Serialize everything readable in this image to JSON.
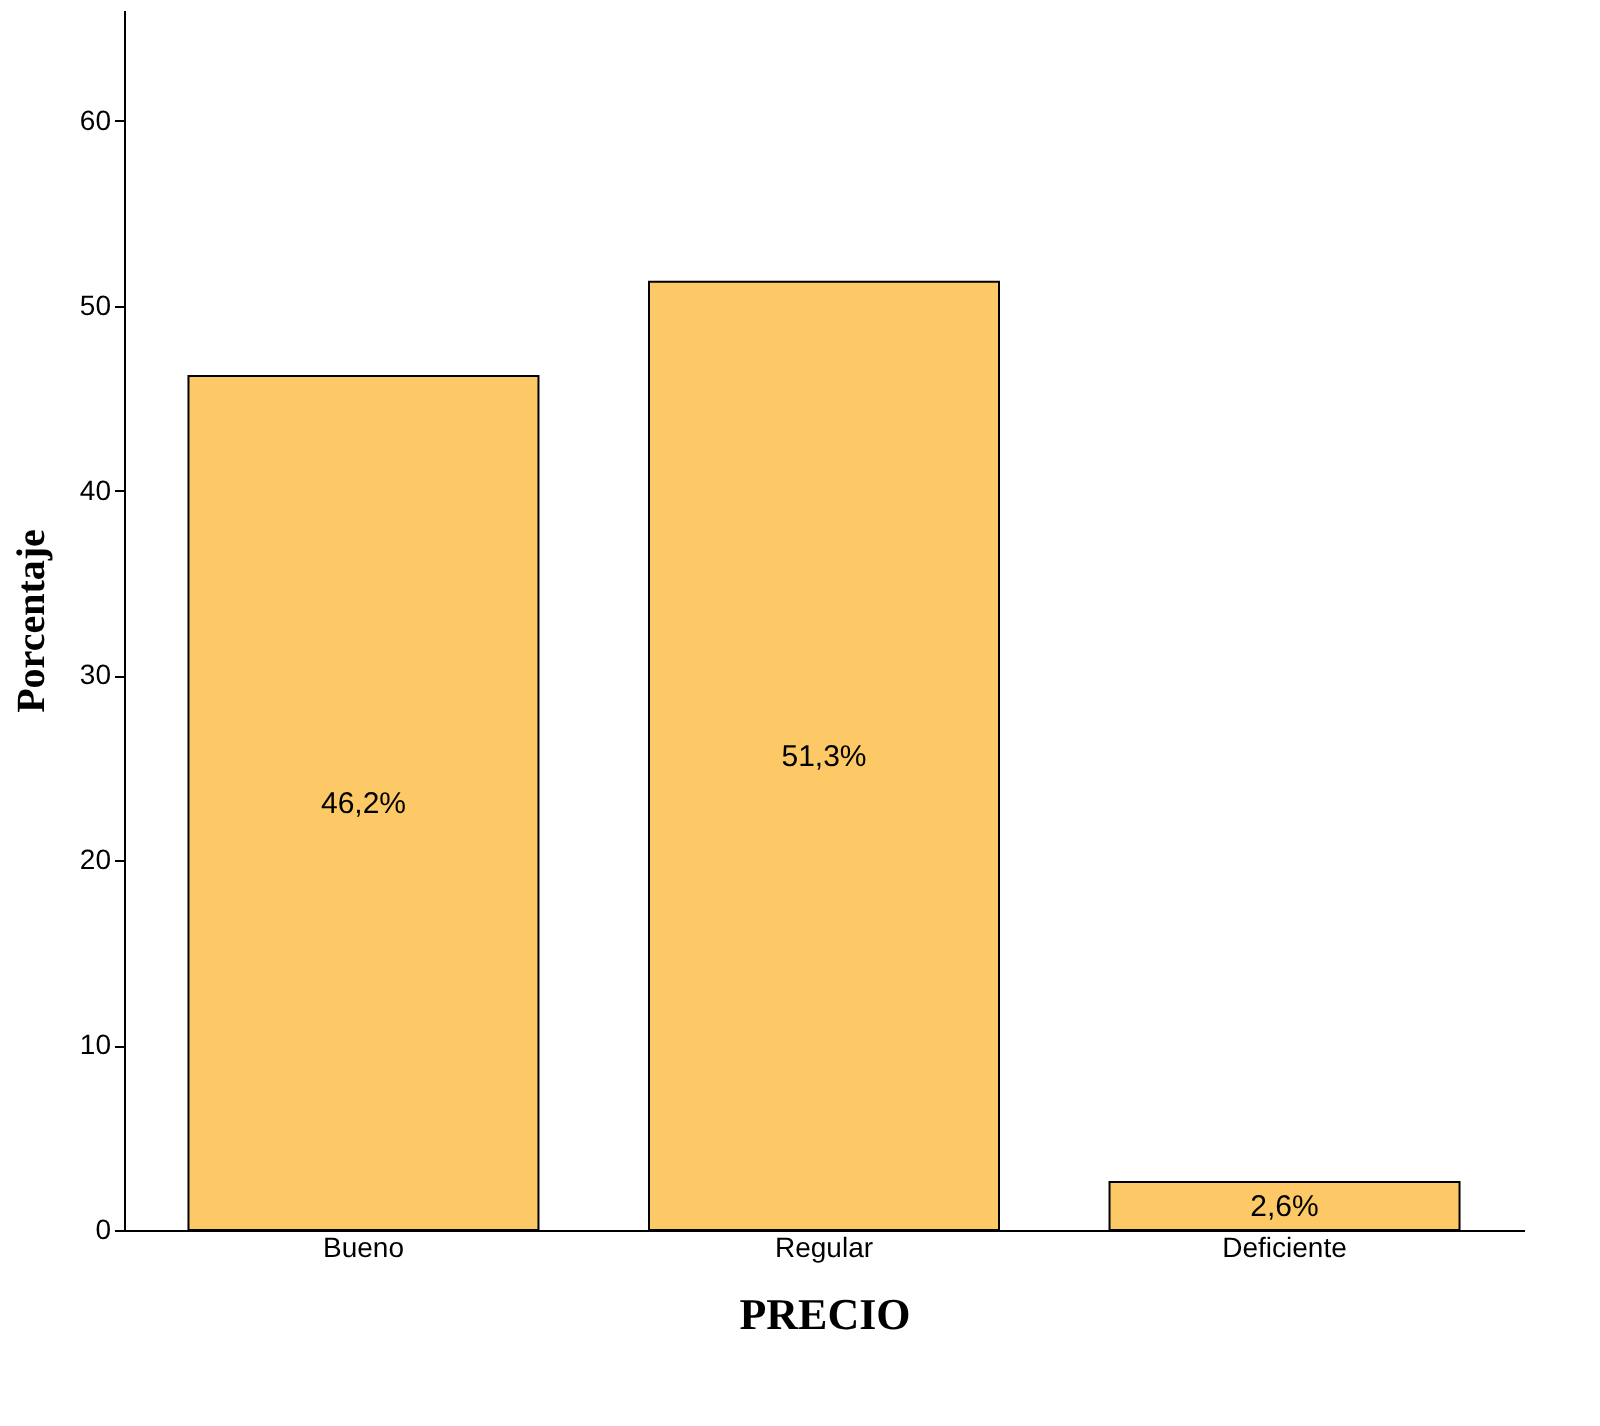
{
  "chart_data": {
    "type": "bar",
    "xlabel": "PRECIO",
    "ylabel": "Porcentaje",
    "categories": [
      "Bueno",
      "Regular",
      "Deficiente"
    ],
    "values": [
      46.2,
      51.3,
      2.6
    ],
    "value_labels": [
      "46,2%",
      "51,3%",
      "2,6%"
    ],
    "color": "#fdc966",
    "ylim": [
      0,
      66
    ],
    "yticks": [
      0,
      10,
      20,
      30,
      40,
      50,
      60
    ],
    "grid": false
  }
}
